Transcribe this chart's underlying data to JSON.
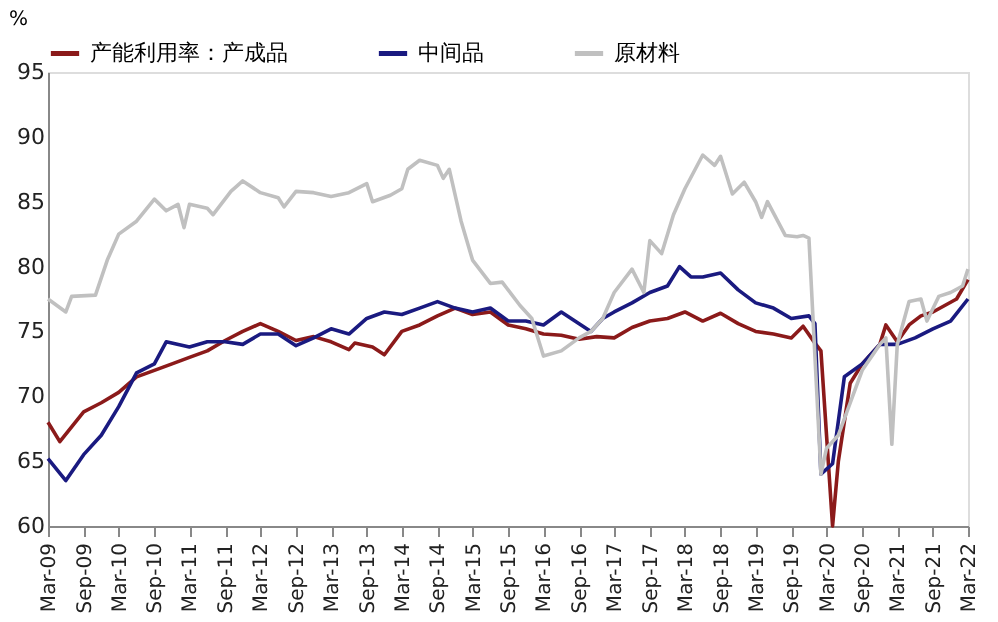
{
  "chart_data": {
    "type": "line",
    "ylabel": "%",
    "legend": "top",
    "grid": false,
    "marker": "none",
    "line_style": "solid",
    "ylim": [
      60,
      95
    ],
    "yticks": [
      60,
      65,
      70,
      75,
      80,
      85,
      90,
      95
    ],
    "xlim": [
      "2009-03",
      "2022-03"
    ],
    "xticks": [
      {
        "value": "2009-03",
        "label": "Mar-09"
      },
      {
        "value": "2009-09",
        "label": "Sep-09"
      },
      {
        "value": "2010-03",
        "label": "Mar-10"
      },
      {
        "value": "2010-09",
        "label": "Sep-10"
      },
      {
        "value": "2011-03",
        "label": "Mar-11"
      },
      {
        "value": "2011-09",
        "label": "Sep-11"
      },
      {
        "value": "2012-03",
        "label": "Mar-12"
      },
      {
        "value": "2012-09",
        "label": "Sep-12"
      },
      {
        "value": "2013-03",
        "label": "Mar-13"
      },
      {
        "value": "2013-09",
        "label": "Sep-13"
      },
      {
        "value": "2014-03",
        "label": "Mar-14"
      },
      {
        "value": "2014-09",
        "label": "Sep-14"
      },
      {
        "value": "2015-03",
        "label": "Mar-15"
      },
      {
        "value": "2015-09",
        "label": "Sep-15"
      },
      {
        "value": "2016-03",
        "label": "Mar-16"
      },
      {
        "value": "2016-09",
        "label": "Sep-16"
      },
      {
        "value": "2017-03",
        "label": "Mar-17"
      },
      {
        "value": "2017-09",
        "label": "Sep-17"
      },
      {
        "value": "2018-03",
        "label": "Mar-18"
      },
      {
        "value": "2018-09",
        "label": "Sep-18"
      },
      {
        "value": "2019-03",
        "label": "Mar-19"
      },
      {
        "value": "2019-09",
        "label": "Sep-19"
      },
      {
        "value": "2020-03",
        "label": "Mar-20"
      },
      {
        "value": "2020-09",
        "label": "Sep-20"
      },
      {
        "value": "2021-03",
        "label": "Mar-21"
      },
      {
        "value": "2021-09",
        "label": "Sep-21"
      },
      {
        "value": "2022-03",
        "label": "Mar-22"
      }
    ],
    "series": [
      {
        "name": "产能利用率：产成品",
        "color": "#8b1a1a",
        "x": [
          "2009-03",
          "2009-05",
          "2009-09",
          "2009-12",
          "2010-03",
          "2010-06",
          "2010-09",
          "2010-12",
          "2011-03",
          "2011-06",
          "2011-09",
          "2011-12",
          "2012-03",
          "2012-06",
          "2012-09",
          "2012-12",
          "2013-03",
          "2013-06",
          "2013-07",
          "2013-10",
          "2013-12",
          "2014-03",
          "2014-06",
          "2014-09",
          "2014-12",
          "2015-03",
          "2015-06",
          "2015-09",
          "2015-12",
          "2016-03",
          "2016-06",
          "2016-09",
          "2016-12",
          "2017-03",
          "2017-06",
          "2017-09",
          "2017-12",
          "2018-03",
          "2018-06",
          "2018-09",
          "2018-12",
          "2019-03",
          "2019-06",
          "2019-09",
          "2019-11",
          "2020-01",
          "2020-02",
          "2020-04",
          "2020-05",
          "2020-07",
          "2020-09",
          "2020-12",
          "2021-01",
          "2021-03",
          "2021-05",
          "2021-07",
          "2021-09",
          "2021-11",
          "2022-01",
          "2022-03"
        ],
        "values": [
          68,
          66.5,
          68.8,
          69.5,
          70.3,
          71.5,
          72,
          72.5,
          73,
          73.5,
          74.3,
          75,
          75.6,
          75,
          74.3,
          74.6,
          74.2,
          73.6,
          74.1,
          73.8,
          73.2,
          75,
          75.5,
          76.2,
          76.8,
          76.3,
          76.5,
          75.5,
          75.2,
          74.8,
          74.7,
          74.4,
          74.6,
          74.5,
          75.3,
          75.8,
          76,
          76.5,
          75.8,
          76.4,
          75.6,
          75,
          74.8,
          74.5,
          75.4,
          74.1,
          73.5,
          60,
          65,
          71,
          72.5,
          74,
          75.5,
          74.2,
          75.5,
          76.2,
          76.5,
          77,
          77.5,
          79
        ]
      },
      {
        "name": "中间品",
        "color": "#1a1a80",
        "x": [
          "2009-03",
          "2009-06",
          "2009-09",
          "2009-12",
          "2010-03",
          "2010-06",
          "2010-09",
          "2010-11",
          "2011-03",
          "2011-06",
          "2011-09",
          "2011-12",
          "2012-03",
          "2012-06",
          "2012-09",
          "2012-12",
          "2013-03",
          "2013-06",
          "2013-09",
          "2013-12",
          "2014-03",
          "2014-06",
          "2014-09",
          "2014-12",
          "2015-03",
          "2015-06",
          "2015-09",
          "2015-12",
          "2016-03",
          "2016-06",
          "2016-09",
          "2016-11",
          "2017-01",
          "2017-03",
          "2017-06",
          "2017-09",
          "2017-12",
          "2018-02",
          "2018-04",
          "2018-06",
          "2018-09",
          "2018-12",
          "2019-03",
          "2019-06",
          "2019-09",
          "2019-12",
          "2020-01",
          "2020-02",
          "2020-04",
          "2020-06",
          "2020-09",
          "2020-12",
          "2021-03",
          "2021-06",
          "2021-09",
          "2021-12",
          "2022-03"
        ],
        "values": [
          65.2,
          63.5,
          65.5,
          67,
          69.2,
          71.8,
          72.5,
          74.2,
          73.8,
          74.2,
          74.2,
          74,
          74.8,
          74.8,
          73.9,
          74.5,
          75.2,
          74.8,
          76,
          76.5,
          76.3,
          76.8,
          77.3,
          76.8,
          76.5,
          76.8,
          75.8,
          75.8,
          75.5,
          76.5,
          75.6,
          75,
          76,
          76.5,
          77.2,
          78,
          78.5,
          80,
          79.2,
          79.2,
          79.5,
          78.2,
          77.2,
          76.8,
          76,
          76.2,
          75.6,
          64,
          64.8,
          71.5,
          72.5,
          74,
          74,
          74.5,
          75.2,
          75.8,
          77.5
        ]
      },
      {
        "name": "原材料",
        "color": "#c0c0c0",
        "x": [
          "2009-03",
          "2009-06",
          "2009-07",
          "2009-11",
          "2010-01",
          "2010-03",
          "2010-06",
          "2010-09",
          "2010-11",
          "2011-01",
          "2011-02",
          "2011-03",
          "2011-06",
          "2011-07",
          "2011-10",
          "2011-12",
          "2012-03",
          "2012-06",
          "2012-07",
          "2012-09",
          "2012-12",
          "2013-03",
          "2013-06",
          "2013-09",
          "2013-10",
          "2014-01",
          "2014-03",
          "2014-04",
          "2014-06",
          "2014-09",
          "2014-10",
          "2014-11",
          "2015-01",
          "2015-03",
          "2015-06",
          "2015-08",
          "2015-11",
          "2016-01",
          "2016-03",
          "2016-06",
          "2016-09",
          "2016-11",
          "2017-01",
          "2017-03",
          "2017-06",
          "2017-08",
          "2017-09",
          "2017-11",
          "2018-01",
          "2018-03",
          "2018-06",
          "2018-08",
          "2018-09",
          "2018-11",
          "2019-01",
          "2019-03",
          "2019-04",
          "2019-05",
          "2019-08",
          "2019-10",
          "2019-11",
          "2019-12",
          "2020-02",
          "2020-03",
          "2020-05",
          "2020-07",
          "2020-09",
          "2020-12",
          "2021-01",
          "2021-02",
          "2021-03",
          "2021-05",
          "2021-07",
          "2021-08",
          "2021-10",
          "2021-12",
          "2022-02",
          "2022-03"
        ],
        "values": [
          77.5,
          76.5,
          77.7,
          77.8,
          80.5,
          82.5,
          83.5,
          85.2,
          84.3,
          84.8,
          83,
          84.8,
          84.5,
          84,
          85.8,
          86.6,
          85.7,
          85.3,
          84.6,
          85.8,
          85.7,
          85.4,
          85.7,
          86.4,
          85,
          85.5,
          86,
          87.5,
          88.2,
          87.8,
          86.8,
          87.5,
          83.5,
          80.5,
          78.7,
          78.8,
          77,
          76,
          73.1,
          73.5,
          74.5,
          75,
          76,
          78,
          79.8,
          78,
          82,
          81,
          84,
          86,
          88.6,
          87.8,
          88.5,
          85.6,
          86.5,
          85,
          83.8,
          85,
          82.4,
          82.3,
          82.4,
          82.2,
          64,
          66,
          67,
          69.5,
          72,
          74,
          74.5,
          66.3,
          74,
          77.3,
          77.5,
          75.8,
          77.7,
          78,
          78.5,
          79.8
        ]
      }
    ]
  }
}
